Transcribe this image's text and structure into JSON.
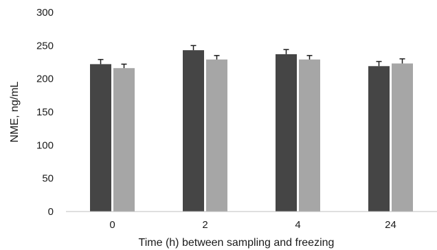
{
  "chart_data": {
    "type": "bar",
    "xlabel": "Time (h) between sampling and freezing",
    "ylabel": "NME, ng/mL",
    "categories": [
      "0",
      "2",
      "4",
      "24"
    ],
    "ylim": [
      0,
      300
    ],
    "yticks": [
      "0",
      "50",
      "100",
      "150",
      "200",
      "250",
      "300"
    ],
    "grid": false,
    "legend": "none",
    "series": [
      {
        "color": "#454545",
        "values": [
          222,
          243,
          237,
          219
        ],
        "errors": [
          7,
          7,
          7,
          7
        ]
      },
      {
        "color": "#a6a6a6",
        "values": [
          216,
          229,
          229,
          223
        ],
        "errors": [
          6,
          6,
          6,
          7
        ]
      }
    ]
  }
}
